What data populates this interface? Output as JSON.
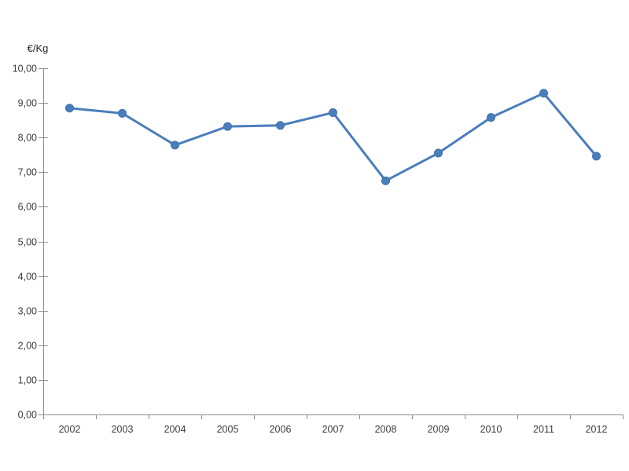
{
  "page": {
    "background": "#ffffff"
  },
  "chart_data": {
    "type": "line",
    "title": "",
    "xlabel": "",
    "ylabel": "€/Kg",
    "categories": [
      "2002",
      "2003",
      "2004",
      "2005",
      "2006",
      "2007",
      "2008",
      "2009",
      "2010",
      "2011",
      "2012"
    ],
    "values": [
      8.85,
      8.7,
      7.78,
      8.32,
      8.35,
      8.72,
      6.75,
      7.55,
      8.58,
      9.28,
      7.46
    ],
    "ylim": [
      0,
      10
    ],
    "ytick_step": 1,
    "ytick_labels": [
      "0,00",
      "1,00",
      "2,00",
      "3,00",
      "4,00",
      "5,00",
      "6,00",
      "7,00",
      "8,00",
      "9,00",
      "10,00"
    ],
    "decimal_separator": ",",
    "grid": false,
    "legend": "none",
    "line_color": "#4a7ebb",
    "marker_color": "#4a7ebb",
    "marker_edge_color": "#3f70ad",
    "axis_color": "#8c8c8c",
    "label_color": "#3b3b3b"
  }
}
